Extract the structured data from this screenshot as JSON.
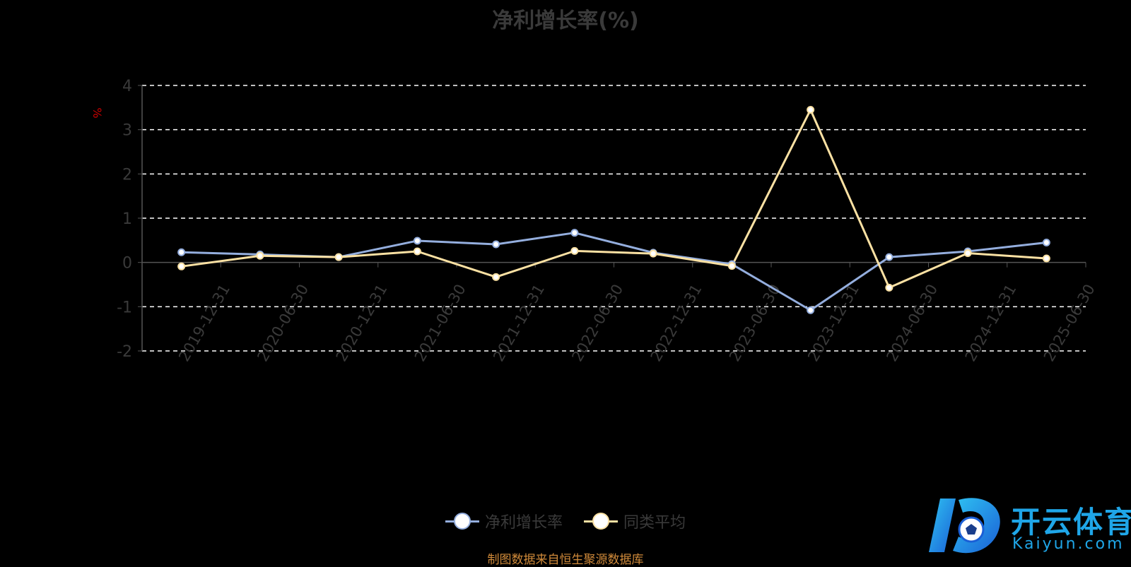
{
  "title": "净利增长率(%)",
  "source_text": "制图数据来自恒生聚源数据库",
  "logo": {
    "text_cn": "开云体育",
    "text_en": "Kaiyun.com",
    "color": "#1fa6e8"
  },
  "chart_data": {
    "type": "line",
    "title": "净利增长率(%)",
    "ylabel": "%",
    "ylim": [
      -2,
      4
    ],
    "yticks": [
      -2,
      -1,
      0,
      1,
      2,
      3,
      4
    ],
    "grid": true,
    "legend_position": "bottom-center",
    "categories": [
      "2019-12-31",
      "2020-06-30",
      "2020-12-31",
      "2021-06-30",
      "2021-12-31",
      "2022-06-30",
      "2022-12-31",
      "2023-06-30",
      "2023-12-31",
      "2024-06-30",
      "2024-12-31",
      "2025-06-30"
    ],
    "series": [
      {
        "name": "净利增长率",
        "color": "#94aede",
        "values": [
          0.23,
          0.18,
          0.12,
          0.49,
          0.41,
          0.67,
          0.22,
          -0.04,
          -1.08,
          0.12,
          0.25,
          0.45
        ]
      },
      {
        "name": "同类平均",
        "color": "#fbe1a3",
        "values": [
          -0.09,
          0.15,
          0.12,
          0.25,
          -0.33,
          0.26,
          0.2,
          -0.08,
          3.45,
          -0.57,
          0.21,
          0.09
        ]
      }
    ]
  }
}
